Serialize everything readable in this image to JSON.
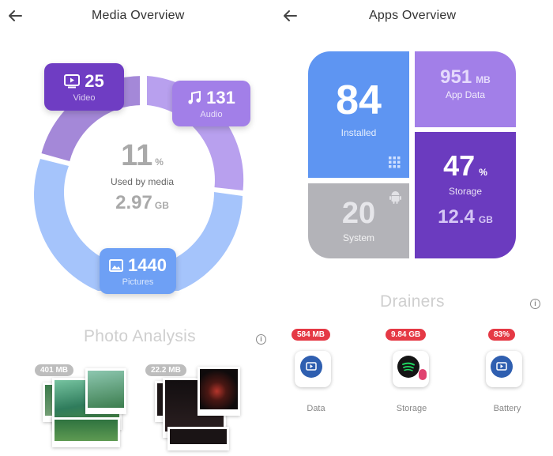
{
  "media": {
    "title": "Media Overview",
    "used_percent": "11",
    "percent_unit": "%",
    "used_label": "Used by media",
    "used_size": "2.97",
    "used_size_unit": "GB",
    "video": {
      "count": "25",
      "label": "Video"
    },
    "audio": {
      "count": "131",
      "label": "Audio"
    },
    "pictures": {
      "count": "1440",
      "label": "Pictures"
    }
  },
  "apps": {
    "title": "Apps Overview",
    "installed": {
      "count": "84",
      "label": "Installed"
    },
    "app_data": {
      "value": "951",
      "unit": "MB",
      "label": "App Data"
    },
    "storage": {
      "percent": "47",
      "unit": "%",
      "label": "Storage",
      "size": "12.4",
      "size_unit": "GB"
    },
    "system": {
      "count": "20",
      "label": "System"
    }
  },
  "photo_analysis": {
    "title": "Photo Analysis",
    "groups": [
      {
        "size": "401 MB"
      },
      {
        "size": "22.2 MB"
      }
    ]
  },
  "drainers": {
    "title": "Drainers",
    "items": [
      {
        "badge": "584 MB",
        "label": "Data"
      },
      {
        "badge": "9.84 GB",
        "label": "Storage"
      },
      {
        "badge": "83%",
        "label": "Battery"
      }
    ]
  },
  "colors": {
    "video_purple": "#6f3dc3",
    "audio_purple": "#a27fe8",
    "pictures_blue": "#6ea0f5",
    "installed_blue": "#5e95f2",
    "storage_purple": "#6b3bbf",
    "system_gray": "#b3b3b8",
    "drainer_red": "#e53945"
  },
  "icons": [
    "back-arrow-icon",
    "video-icon",
    "music-note-icon",
    "image-icon",
    "grid-icon",
    "android-icon",
    "info-icon",
    "spotify-icon"
  ]
}
